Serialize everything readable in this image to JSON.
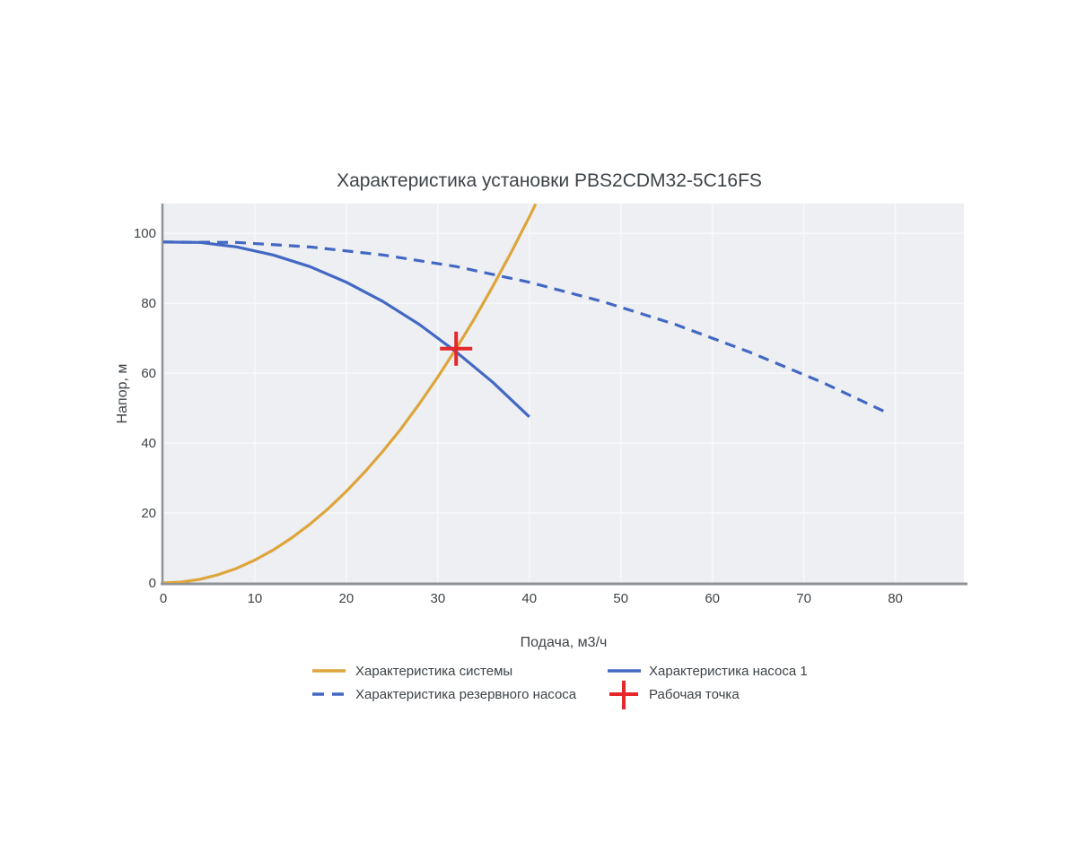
{
  "window": {
    "background": "#ffffff"
  },
  "chart_data": {
    "type": "line",
    "title": "Характеристика установки PBS2CDM32-5C16FS",
    "xlabel": "Подача, м3/ч",
    "ylabel": "Напор, м",
    "xlim": [
      0,
      87.5
    ],
    "ylim": [
      0,
      108.5
    ],
    "xticks": [
      0,
      10,
      20,
      30,
      40,
      50,
      60,
      70,
      80
    ],
    "yticks": [
      0,
      20,
      40,
      60,
      80,
      100
    ],
    "grid": true,
    "legend_position": "bottom",
    "colors": {
      "plot_background": "#edeff2",
      "grid": "#f7f8fa",
      "axis": "#8e9297",
      "text": "#3e4347",
      "system_curve": "#dea53c",
      "pump_curve": "#4368c4",
      "working_point": "#e5282c"
    },
    "series": [
      {
        "name": "Характеристика системы",
        "type": "line",
        "dash": "solid",
        "color": "#dea53c",
        "points": [
          [
            0,
            0
          ],
          [
            2,
            0.26
          ],
          [
            4,
            1.05
          ],
          [
            6,
            2.36
          ],
          [
            8,
            4.19
          ],
          [
            10,
            6.54
          ],
          [
            12,
            9.42
          ],
          [
            14,
            12.82
          ],
          [
            16,
            16.75
          ],
          [
            18,
            21.2
          ],
          [
            20,
            26.2
          ],
          [
            22,
            31.7
          ],
          [
            24,
            37.7
          ],
          [
            26,
            44.2
          ],
          [
            28,
            51.3
          ],
          [
            30,
            58.9
          ],
          [
            32,
            67
          ],
          [
            34,
            75.6
          ],
          [
            36,
            84.8
          ],
          [
            38,
            94.5
          ],
          [
            40,
            104.7
          ],
          [
            40.7,
            108.4
          ]
        ]
      },
      {
        "name": "Характеристика насоса 1",
        "type": "line",
        "dash": "solid",
        "color": "#4368c4",
        "points": [
          [
            0,
            97.5
          ],
          [
            4,
            97.4
          ],
          [
            8,
            96.1
          ],
          [
            12,
            93.8
          ],
          [
            16,
            90.5
          ],
          [
            20,
            86
          ],
          [
            24,
            80.5
          ],
          [
            28,
            73.9
          ],
          [
            32,
            66.1
          ],
          [
            36,
            57.4
          ],
          [
            40,
            47.5
          ]
        ]
      },
      {
        "name": "Характеристика резервного насоса",
        "type": "line",
        "dash": "dashed",
        "color": "#4368c4",
        "points": [
          [
            0,
            97.5
          ],
          [
            8,
            97.4
          ],
          [
            16,
            96.1
          ],
          [
            24,
            93.8
          ],
          [
            32,
            90.5
          ],
          [
            40,
            86
          ],
          [
            48,
            80.5
          ],
          [
            56,
            73.9
          ],
          [
            64,
            66.1
          ],
          [
            72,
            57.4
          ],
          [
            79,
            48.8
          ]
        ]
      },
      {
        "name": "Рабочая точка",
        "type": "marker",
        "marker": "cross",
        "color": "#e5282c",
        "points": [
          [
            32,
            67
          ]
        ]
      }
    ],
    "operating_point": {
      "flow_m3h": 32,
      "head_m": 67
    }
  }
}
